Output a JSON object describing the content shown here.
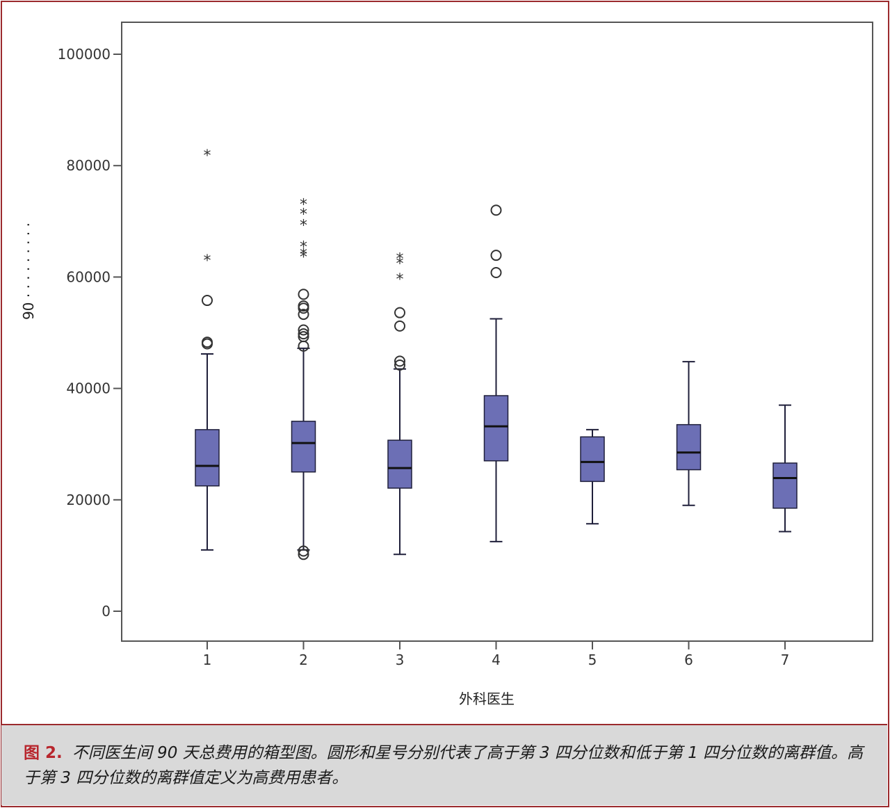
{
  "chart_data": {
    "type": "boxplot",
    "xlabel": "外科医生",
    "ylabel": "90 · · · · · · · · ·",
    "ylim": [
      0,
      105000
    ],
    "yticks": [
      0,
      20000,
      40000,
      60000,
      80000,
      100000
    ],
    "ytick_labels": [
      "0",
      "20000",
      "40000",
      "60000",
      "80000",
      "100000"
    ],
    "categories": [
      "1",
      "2",
      "3",
      "4",
      "5",
      "6",
      "7"
    ],
    "grid": false,
    "colors": {
      "box_fill": "#6c6fb5",
      "box_stroke": "#1f1f3a",
      "marker": "#333333"
    },
    "boxes": [
      {
        "category": "1",
        "whisker_low": 11000,
        "q1": 22500,
        "median": 26100,
        "q3": 32600,
        "whisker_high": 46200,
        "outliers_circle": [
          48000,
          48300,
          55800
        ],
        "outliers_star": [
          63200,
          82000
        ]
      },
      {
        "category": "2",
        "whisker_low": 11000,
        "q1": 25000,
        "median": 30200,
        "q3": 34100,
        "whisker_high": 47200,
        "outliers_circle": [
          10200,
          10800,
          47600,
          49300,
          49800,
          50500,
          53300,
          54400,
          54800,
          56900
        ],
        "outliers_star": [
          63800,
          64300,
          65600,
          69500,
          71500,
          73200
        ]
      },
      {
        "category": "3",
        "whisker_low": 10200,
        "q1": 22100,
        "median": 25700,
        "q3": 30700,
        "whisker_high": 43500,
        "outliers_circle": [
          44200,
          44900,
          51200,
          53600
        ],
        "outliers_star": [
          59800,
          62600,
          63500
        ]
      },
      {
        "category": "4",
        "whisker_low": 12500,
        "q1": 27000,
        "median": 33200,
        "q3": 38700,
        "whisker_high": 52500,
        "outliers_circle": [
          60800,
          63900,
          72000
        ],
        "outliers_star": []
      },
      {
        "category": "5",
        "whisker_low": 15700,
        "q1": 23300,
        "median": 26800,
        "q3": 31300,
        "whisker_high": 32600,
        "outliers_circle": [],
        "outliers_star": []
      },
      {
        "category": "6",
        "whisker_low": 19000,
        "q1": 25400,
        "median": 28500,
        "q3": 33500,
        "whisker_high": 44800,
        "outliers_circle": [],
        "outliers_star": []
      },
      {
        "category": "7",
        "whisker_low": 14300,
        "q1": 18500,
        "median": 23900,
        "q3": 26600,
        "whisker_high": 37000,
        "outliers_circle": [],
        "outliers_star": []
      }
    ]
  },
  "caption": {
    "label": "图 2.",
    "text": "不同医生间 90 天总费用的箱型图。圆形和星号分别代表了高于第 3 四分位数和低于第 1 四分位数的离群值。高于第 3 四分位数的离群值定义为高费用患者。"
  }
}
